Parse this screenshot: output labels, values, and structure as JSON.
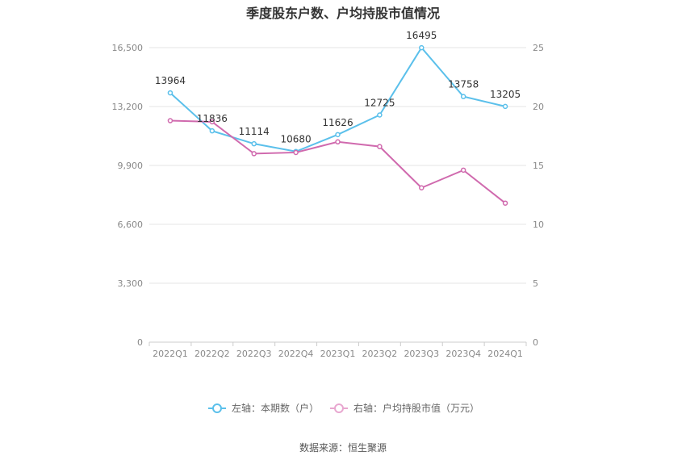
{
  "chart_data": {
    "type": "line",
    "title": "季度股东户数、户均持股市值情况",
    "categories": [
      "2022Q1",
      "2022Q2",
      "2022Q3",
      "2022Q4",
      "2023Q1",
      "2023Q2",
      "2023Q3",
      "2023Q4",
      "2024Q1"
    ],
    "left_axis": {
      "ylim": [
        0,
        16500
      ],
      "ticks": [
        "0",
        "3,300",
        "6,600",
        "9,900",
        "13,200",
        "16,500"
      ]
    },
    "right_axis": {
      "ylim": [
        0,
        25
      ],
      "ticks": [
        "0",
        "5",
        "10",
        "15",
        "20",
        "25"
      ]
    },
    "series": [
      {
        "name": "左轴：本期数（户）",
        "axis": "left",
        "color": "#5bc0eb",
        "values": [
          13964,
          11836,
          11114,
          10680,
          11626,
          12725,
          16495,
          13758,
          13205
        ],
        "labels": [
          "13964",
          "11836",
          "11114",
          "10680",
          "11626",
          "12725",
          "16495",
          "13758",
          "13205"
        ]
      },
      {
        "name": "右轴：户均持股市值（万元）",
        "axis": "right",
        "color": "#d06aae",
        "values": [
          18.8,
          18.7,
          16.0,
          16.1,
          17.0,
          16.6,
          13.1,
          14.6,
          11.8
        ]
      }
    ],
    "grid": true,
    "legend_position": "bottom"
  },
  "source": "数据来源：恒生聚源"
}
